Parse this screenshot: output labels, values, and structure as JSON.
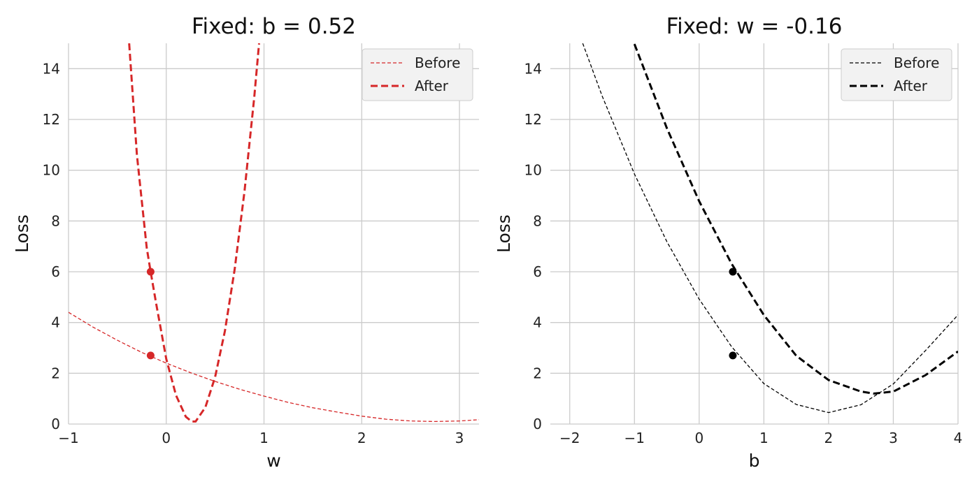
{
  "chart_data": [
    {
      "type": "line",
      "title": "Fixed: b = 0.52",
      "xlabel": "w",
      "ylabel": "Loss",
      "xlim": [
        -1,
        3.2
      ],
      "ylim": [
        0,
        15
      ],
      "xticks": [
        -1,
        0,
        1,
        2,
        3
      ],
      "yticks": [
        0,
        2,
        4,
        6,
        8,
        10,
        12,
        14
      ],
      "x_tick_labels": [
        "−1",
        "0",
        "1",
        "2",
        "3"
      ],
      "y_tick_labels": [
        "0",
        "2",
        "4",
        "6",
        "8",
        "10",
        "12",
        "14"
      ],
      "grid": true,
      "legend_position": "top-right",
      "line_color": "#d62728",
      "series": [
        {
          "name": "Before",
          "style": "thin-dashed",
          "x": [
            -1,
            -0.75,
            -0.5,
            -0.25,
            0,
            0.25,
            0.5,
            0.75,
            1,
            1.25,
            1.5,
            1.75,
            2,
            2.25,
            2.5,
            2.75,
            3,
            3.2
          ],
          "y": [
            4.4,
            3.82,
            3.3,
            2.82,
            2.4,
            2.02,
            1.68,
            1.37,
            1.1,
            0.85,
            0.64,
            0.47,
            0.31,
            0.19,
            0.12,
            0.1,
            0.12,
            0.17
          ]
        },
        {
          "name": "After",
          "style": "thick-dashed",
          "x": [
            -0.38,
            -0.3,
            -0.2,
            -0.16,
            -0.1,
            0,
            0.1,
            0.2,
            0.26,
            0.3,
            0.4,
            0.5,
            0.6,
            0.7,
            0.8,
            0.9,
            0.95
          ],
          "y": [
            15,
            10.6,
            6.95,
            6.0,
            4.67,
            2.56,
            1.13,
            0.29,
            0.1,
            0.1,
            0.66,
            1.85,
            3.66,
            6.1,
            9.16,
            12.85,
            15.0
          ]
        }
      ],
      "points": [
        {
          "x": -0.16,
          "y": 6.0
        },
        {
          "x": -0.16,
          "y": 2.7
        }
      ]
    },
    {
      "type": "line",
      "title": "Fixed: w = -0.16",
      "xlabel": "b",
      "ylabel": "Loss",
      "xlim": [
        -2.3,
        4.0
      ],
      "ylim": [
        0,
        15
      ],
      "xticks": [
        -2,
        -1,
        0,
        1,
        2,
        3,
        4
      ],
      "yticks": [
        0,
        2,
        4,
        6,
        8,
        10,
        12,
        14
      ],
      "x_tick_labels": [
        "−2",
        "−1",
        "0",
        "1",
        "2",
        "3",
        "4"
      ],
      "y_tick_labels": [
        "0",
        "2",
        "4",
        "6",
        "8",
        "10",
        "12",
        "14"
      ],
      "grid": true,
      "legend_position": "top-right",
      "line_color": "#000000",
      "series": [
        {
          "name": "Before",
          "style": "thin-dashed",
          "x": [
            -1.8,
            -1.5,
            -1,
            -0.5,
            0,
            0.5,
            1,
            1.5,
            2,
            2.5,
            3,
            3.5,
            4
          ],
          "y": [
            15.0,
            12.93,
            9.85,
            7.19,
            4.92,
            3.05,
            1.59,
            0.77,
            0.45,
            0.76,
            1.58,
            2.9,
            4.3
          ]
        },
        {
          "name": "After",
          "style": "thick-dashed",
          "x": [
            -1.0,
            -0.5,
            0,
            0.5,
            1,
            1.5,
            2,
            2.5,
            2.7,
            3,
            3.5,
            4
          ],
          "y": [
            14.97,
            11.66,
            8.78,
            6.32,
            4.29,
            2.69,
            1.73,
            1.28,
            1.2,
            1.28,
            1.93,
            2.86
          ]
        }
      ],
      "points": [
        {
          "x": 0.52,
          "y": 6.0
        },
        {
          "x": 0.52,
          "y": 2.7
        }
      ]
    }
  ]
}
